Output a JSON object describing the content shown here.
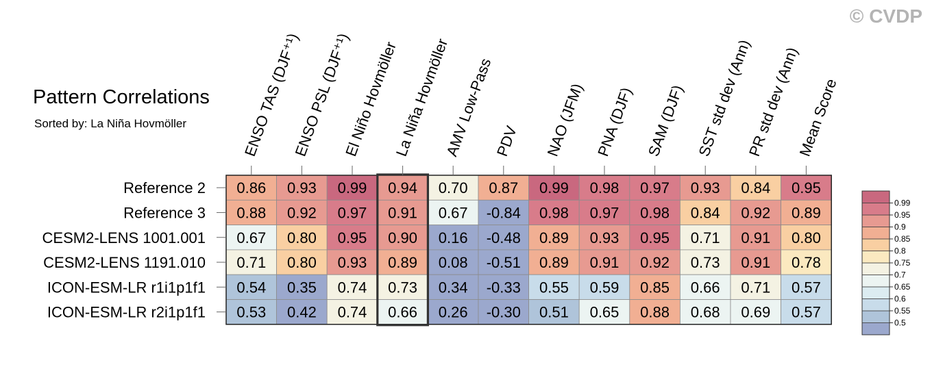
{
  "title": "Pattern Correlations",
  "subtitle": "Sorted by: La Niña Hovmöller",
  "copyright": "© CVDP",
  "chart_data": {
    "type": "heatmap",
    "columns": [
      "ENSO TAS (DJF⁺¹)",
      "ENSO PSL (DJF⁺¹)",
      "El Niño Hovmöller",
      "La Niña Hovmöller",
      "AMV Low-Pass",
      "PDV",
      "NAO (JFM)",
      "PNA (DJF)",
      "SAM (DJF)",
      "SST std dev (Ann)",
      "PR std dev (Ann)",
      "Mean Score"
    ],
    "rows": [
      "Reference 2",
      "Reference 3",
      "CESM2-LENS 1001.001",
      "CESM2-LENS 1191.010",
      "ICON-ESM-LR r1i1p1f1",
      "ICON-ESM-LR r2i1p1f1"
    ],
    "values": [
      [
        0.86,
        0.93,
        0.99,
        0.94,
        0.7,
        0.87,
        0.99,
        0.98,
        0.97,
        0.93,
        0.84,
        0.95
      ],
      [
        0.88,
        0.92,
        0.97,
        0.91,
        0.67,
        -0.84,
        0.98,
        0.97,
        0.98,
        0.84,
        0.92,
        0.89
      ],
      [
        0.67,
        0.8,
        0.95,
        0.9,
        0.16,
        -0.48,
        0.89,
        0.93,
        0.95,
        0.71,
        0.91,
        0.8
      ],
      [
        0.71,
        0.8,
        0.93,
        0.89,
        0.08,
        -0.51,
        0.89,
        0.91,
        0.92,
        0.73,
        0.91,
        0.78
      ],
      [
        0.54,
        0.35,
        0.74,
        0.73,
        0.34,
        -0.33,
        0.55,
        0.59,
        0.85,
        0.66,
        0.71,
        0.57
      ],
      [
        0.53,
        0.42,
        0.74,
        0.66,
        0.26,
        -0.3,
        0.51,
        0.65,
        0.88,
        0.68,
        0.69,
        0.57
      ]
    ],
    "labels": [
      [
        "0.86",
        "0.93",
        "0.99",
        "0.94",
        "0.70",
        "0.87",
        "0.99",
        "0.98",
        "0.97",
        "0.93",
        "0.84",
        "0.95"
      ],
      [
        "0.88",
        "0.92",
        "0.97",
        "0.91",
        "0.67",
        "-0.84",
        "0.98",
        "0.97",
        "0.98",
        "0.84",
        "0.92",
        "0.89"
      ],
      [
        "0.67",
        "0.80",
        "0.95",
        "0.90",
        "0.16",
        "-0.48",
        "0.89",
        "0.93",
        "0.95",
        "0.71",
        "0.91",
        "0.80"
      ],
      [
        "0.71",
        "0.80",
        "0.93",
        "0.89",
        "0.08",
        "-0.51",
        "0.89",
        "0.91",
        "0.92",
        "0.73",
        "0.91",
        "0.78"
      ],
      [
        "0.54",
        "0.35",
        "0.74",
        "0.73",
        "0.34",
        "-0.33",
        "0.55",
        "0.59",
        "0.85",
        "0.66",
        "0.71",
        "0.57"
      ],
      [
        "0.53",
        "0.42",
        "0.74",
        "0.66",
        "0.26",
        "-0.30",
        "0.51",
        "0.65",
        "0.88",
        "0.68",
        "0.69",
        "0.57"
      ]
    ],
    "highlighted_column": "La Niña Hovmöller",
    "colorbar": {
      "levels": [
        0.5,
        0.55,
        0.6,
        0.65,
        0.7,
        0.75,
        0.8,
        0.85,
        0.9,
        0.95,
        0.99
      ],
      "tick_labels": [
        "0.5",
        "0.55",
        "0.6",
        "0.65",
        "0.7",
        "0.75",
        "0.8",
        "0.85",
        "0.9",
        "0.95",
        "0.99"
      ],
      "colors": [
        "#9ba8cd",
        "#afc4da",
        "#c8dcea",
        "#dcecf1",
        "#ecf4f2",
        "#f4f2e3",
        "#fbe9c0",
        "#f9cfa2",
        "#f1af93",
        "#e79a91",
        "#d87c8a",
        "#c9687f"
      ]
    }
  }
}
